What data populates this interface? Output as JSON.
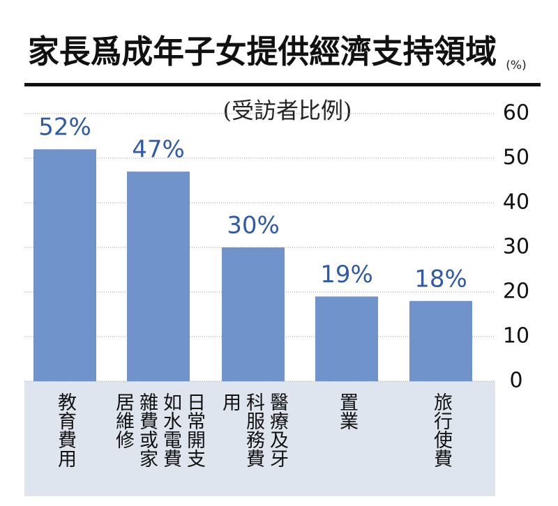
{
  "chart_data": {
    "type": "bar",
    "title": "家長爲成年子女提供經濟支持領域",
    "unit": "(%)",
    "subtitle": "(受訪者比例)",
    "categories": [
      "教育費用",
      "日常開支如水電費雜費或家居維修",
      "醫療及牙科服務費用",
      "置業",
      "旅行使費"
    ],
    "values": [
      52,
      47,
      30,
      19,
      18
    ],
    "value_labels": [
      "52%",
      "47%",
      "30%",
      "19%",
      "18%"
    ],
    "color": "#7193cc",
    "label_color": "#2f5aa8",
    "ylim": [
      0,
      60
    ],
    "yticks": [
      0,
      10,
      20,
      30,
      40,
      50,
      60
    ],
    "grid": true,
    "y_axis_side": "right"
  }
}
